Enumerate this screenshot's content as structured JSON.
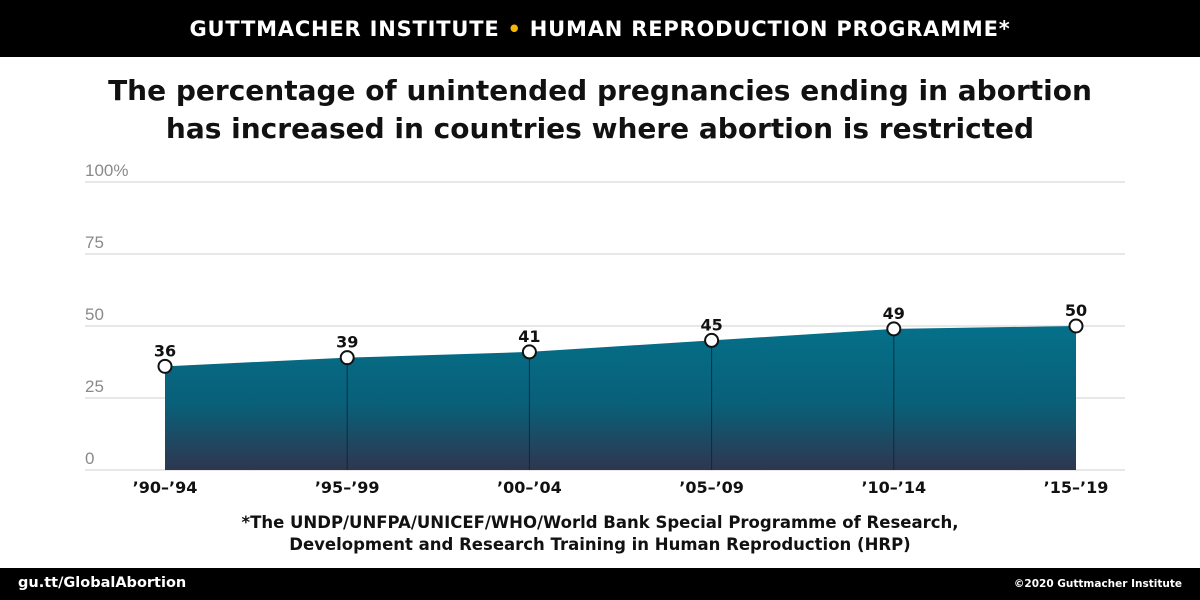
{
  "header": {
    "org1": "GUTTMACHER INSTITUTE",
    "separator": "•",
    "org2": "HUMAN REPRODUCTION PROGRAMME*",
    "separator_color": "#f2b705"
  },
  "title_lines": [
    "The percentage of unintended pregnancies ending in abortion",
    "has increased in countries where abortion is restricted"
  ],
  "footnote_lines": [
    "*The UNDP/UNFPA/UNICEF/WHO/World Bank Special Programme of Research,",
    "Development and Research Training in Human Reproduction (HRP)"
  ],
  "footer": {
    "url": "gu.tt/GlobalAbortion",
    "copyright": "©2020 Guttmacher Institute"
  },
  "chart_data": {
    "type": "area",
    "categories": [
      "’90–’94",
      "’95–’99",
      "’00–’04",
      "’05–’09",
      "’10–’14",
      "’15–’19"
    ],
    "values": [
      36,
      39,
      41,
      45,
      49,
      50
    ],
    "ylim": [
      0,
      100
    ],
    "yticks": [
      0,
      25,
      50,
      75,
      100
    ],
    "ytick_labels": [
      "0",
      "25",
      "50",
      "75",
      "100%"
    ],
    "grid": true,
    "colors": {
      "area_top": "#05708a",
      "area_mid": "#095f78",
      "area_bottom": "#2f3650",
      "grid": "#d0d0d0",
      "marker_stroke": "#111111",
      "marker_fill": "#ffffff"
    }
  }
}
